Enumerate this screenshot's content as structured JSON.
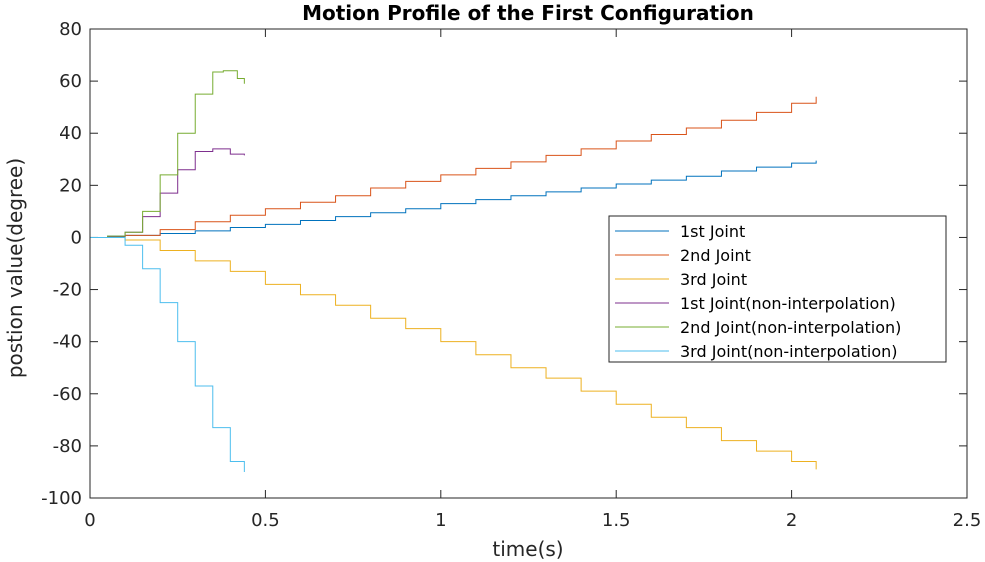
{
  "chart_data": {
    "type": "line",
    "step": true,
    "title": "Motion Profile of the First Configuration",
    "xlabel": "time(s)",
    "ylabel": "postion value(degree)",
    "xlim": [
      0,
      2.5
    ],
    "ylim": [
      -100,
      80
    ],
    "xticks": [
      0,
      0.5,
      1,
      1.5,
      2,
      2.5
    ],
    "xtick_labels": [
      "0",
      "0.5",
      "1",
      "1.5",
      "2",
      "2.5"
    ],
    "yticks": [
      -100,
      -80,
      -60,
      -40,
      -20,
      0,
      20,
      40,
      60,
      80
    ],
    "ytick_labels": [
      "-100",
      "-80",
      "-60",
      "-40",
      "-20",
      "0",
      "20",
      "40",
      "60",
      "80"
    ],
    "grid": false,
    "legend_position": "right",
    "series": [
      {
        "name": "1st Joint",
        "color": "#0072BD",
        "points": [
          [
            0,
            0
          ],
          [
            0.05,
            0.5
          ],
          [
            0.1,
            0.8
          ],
          [
            0.2,
            1.5
          ],
          [
            0.3,
            2.5
          ],
          [
            0.4,
            3.8
          ],
          [
            0.5,
            5
          ],
          [
            0.6,
            6.5
          ],
          [
            0.7,
            8
          ],
          [
            0.8,
            9.5
          ],
          [
            0.9,
            11
          ],
          [
            1.0,
            13
          ],
          [
            1.1,
            14.5
          ],
          [
            1.2,
            16
          ],
          [
            1.3,
            17.5
          ],
          [
            1.4,
            19
          ],
          [
            1.5,
            20.5
          ],
          [
            1.6,
            22
          ],
          [
            1.7,
            23.5
          ],
          [
            1.8,
            25.5
          ],
          [
            1.9,
            27
          ],
          [
            2.0,
            28.5
          ],
          [
            2.07,
            29.5
          ]
        ]
      },
      {
        "name": "2nd Joint",
        "color": "#D95319",
        "points": [
          [
            0,
            0
          ],
          [
            0.05,
            0.3
          ],
          [
            0.1,
            0.8
          ],
          [
            0.2,
            3
          ],
          [
            0.3,
            6
          ],
          [
            0.4,
            8.5
          ],
          [
            0.5,
            11
          ],
          [
            0.6,
            13.5
          ],
          [
            0.7,
            16
          ],
          [
            0.8,
            19
          ],
          [
            0.9,
            21.5
          ],
          [
            1.0,
            24
          ],
          [
            1.1,
            26.5
          ],
          [
            1.2,
            29
          ],
          [
            1.3,
            31.5
          ],
          [
            1.4,
            34
          ],
          [
            1.5,
            37
          ],
          [
            1.6,
            39.5
          ],
          [
            1.7,
            42
          ],
          [
            1.8,
            45
          ],
          [
            1.9,
            48
          ],
          [
            2.0,
            51.5
          ],
          [
            2.07,
            54
          ]
        ]
      },
      {
        "name": "3rd Joint",
        "color": "#EDB120",
        "points": [
          [
            0,
            0
          ],
          [
            0.05,
            0
          ],
          [
            0.1,
            -1
          ],
          [
            0.2,
            -5
          ],
          [
            0.3,
            -9
          ],
          [
            0.4,
            -13
          ],
          [
            0.5,
            -18
          ],
          [
            0.6,
            -22
          ],
          [
            0.7,
            -26
          ],
          [
            0.8,
            -31
          ],
          [
            0.9,
            -35
          ],
          [
            1.0,
            -40
          ],
          [
            1.1,
            -45
          ],
          [
            1.2,
            -50
          ],
          [
            1.3,
            -54
          ],
          [
            1.4,
            -59
          ],
          [
            1.5,
            -64
          ],
          [
            1.6,
            -69
          ],
          [
            1.7,
            -73
          ],
          [
            1.8,
            -78
          ],
          [
            1.9,
            -82
          ],
          [
            2.0,
            -86
          ],
          [
            2.07,
            -89
          ]
        ]
      },
      {
        "name": "1st Joint(non-interpolation)",
        "color": "#7E2F8E",
        "points": [
          [
            0,
            0
          ],
          [
            0.05,
            0.3
          ],
          [
            0.1,
            2
          ],
          [
            0.15,
            8
          ],
          [
            0.2,
            17
          ],
          [
            0.25,
            26
          ],
          [
            0.3,
            33
          ],
          [
            0.35,
            34
          ],
          [
            0.4,
            32
          ],
          [
            0.44,
            31.5
          ]
        ]
      },
      {
        "name": "2nd Joint(non-interpolation)",
        "color": "#77AC30",
        "points": [
          [
            0,
            0
          ],
          [
            0.05,
            0.5
          ],
          [
            0.1,
            2
          ],
          [
            0.15,
            10
          ],
          [
            0.2,
            24
          ],
          [
            0.25,
            40
          ],
          [
            0.3,
            55
          ],
          [
            0.35,
            63.5
          ],
          [
            0.38,
            64
          ],
          [
            0.42,
            61
          ],
          [
            0.44,
            59
          ]
        ]
      },
      {
        "name": "3rd Joint(non-interpolation)",
        "color": "#4DBEEE",
        "points": [
          [
            0,
            0
          ],
          [
            0.05,
            0
          ],
          [
            0.1,
            -3
          ],
          [
            0.15,
            -12
          ],
          [
            0.2,
            -25
          ],
          [
            0.25,
            -40
          ],
          [
            0.3,
            -57
          ],
          [
            0.35,
            -73
          ],
          [
            0.4,
            -86
          ],
          [
            0.44,
            -90
          ]
        ]
      }
    ]
  }
}
